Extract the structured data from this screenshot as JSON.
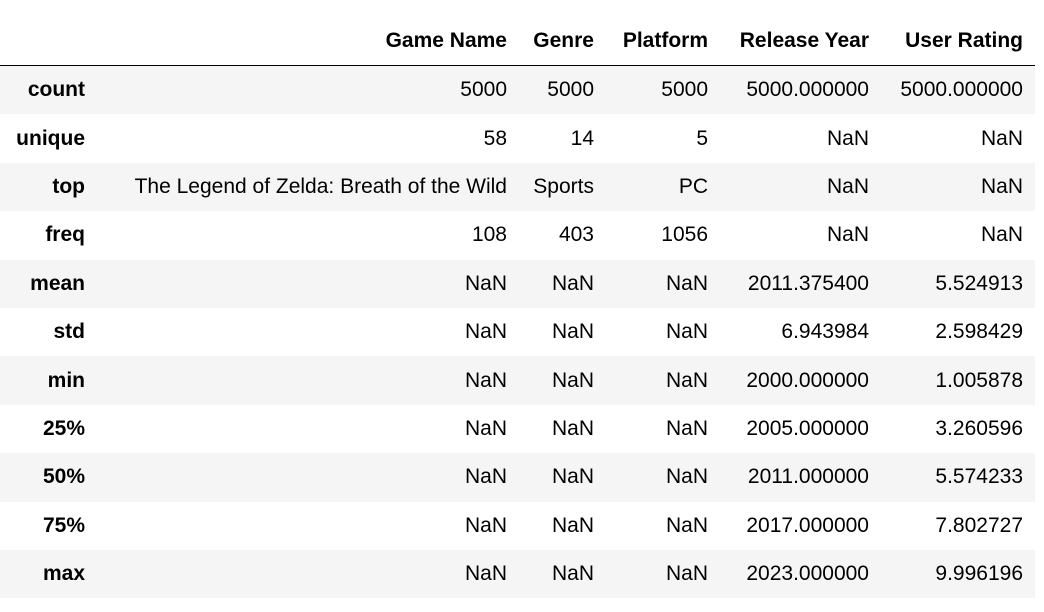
{
  "dataframe": {
    "columns": [
      "",
      "Game Name",
      "Genre",
      "Platform",
      "Release Year",
      "User Rating"
    ],
    "rows": [
      {
        "index": "count",
        "cells": [
          "5000",
          "5000",
          "5000",
          "5000.000000",
          "5000.000000"
        ]
      },
      {
        "index": "unique",
        "cells": [
          "58",
          "14",
          "5",
          "NaN",
          "NaN"
        ]
      },
      {
        "index": "top",
        "cells": [
          "The Legend of Zelda: Breath of the Wild",
          "Sports",
          "PC",
          "NaN",
          "NaN"
        ]
      },
      {
        "index": "freq",
        "cells": [
          "108",
          "403",
          "1056",
          "NaN",
          "NaN"
        ]
      },
      {
        "index": "mean",
        "cells": [
          "NaN",
          "NaN",
          "NaN",
          "2011.375400",
          "5.524913"
        ]
      },
      {
        "index": "std",
        "cells": [
          "NaN",
          "NaN",
          "NaN",
          "6.943984",
          "2.598429"
        ]
      },
      {
        "index": "min",
        "cells": [
          "NaN",
          "NaN",
          "NaN",
          "2000.000000",
          "1.005878"
        ]
      },
      {
        "index": "25%",
        "cells": [
          "NaN",
          "NaN",
          "NaN",
          "2005.000000",
          "3.260596"
        ]
      },
      {
        "index": "50%",
        "cells": [
          "NaN",
          "NaN",
          "NaN",
          "2011.000000",
          "5.574233"
        ]
      },
      {
        "index": "75%",
        "cells": [
          "NaN",
          "NaN",
          "NaN",
          "2017.000000",
          "7.802727"
        ]
      },
      {
        "index": "max",
        "cells": [
          "NaN",
          "NaN",
          "NaN",
          "2023.000000",
          "9.996196"
        ]
      }
    ]
  }
}
